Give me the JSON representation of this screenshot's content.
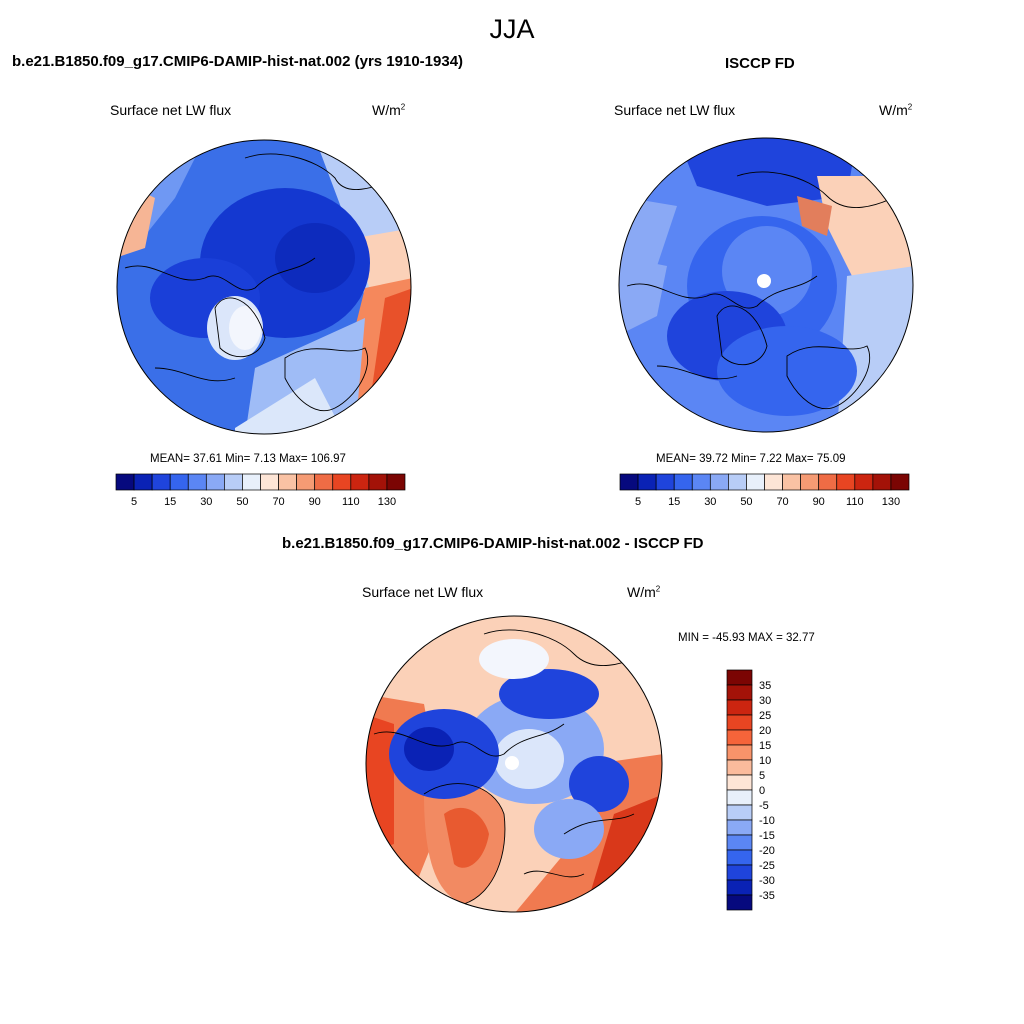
{
  "season": "JJA",
  "panels": {
    "model": {
      "title": "b.e21.B1850.f09_g17.CMIP6-DAMIP-hist-nat.002 (yrs 1910-1934)",
      "variable": "Surface net LW flux",
      "units_base": "W/m",
      "units_exp": "2",
      "stats": "MEAN=  37.61  Min=   7.13  Max= 106.97"
    },
    "obs": {
      "title": "ISCCP FD",
      "variable": "Surface net LW flux",
      "units_base": "W/m",
      "units_exp": "2",
      "stats": "MEAN=  39.72  Min=   7.22  Max=  75.09"
    },
    "diff": {
      "title": "b.e21.B1850.f09_g17.CMIP6-DAMIP-hist-nat.002 - ISCCP FD",
      "variable": "Surface net LW flux",
      "units_base": "W/m",
      "units_exp": "2",
      "stats": "MIN = -45.93 MAX =  32.77"
    }
  },
  "colorbar_main": {
    "colors": [
      "#06097e",
      "#0a22b5",
      "#1f44dc",
      "#3565ee",
      "#5b86f4",
      "#8aa9f5",
      "#b8cdf7",
      "#e8f0fb",
      "#fde5d6",
      "#f9c2a4",
      "#f59b74",
      "#ef6c45",
      "#e84522",
      "#cc2510",
      "#a31208",
      "#7b0503"
    ],
    "tick_labels": [
      "5",
      "15",
      "30",
      "50",
      "70",
      "90",
      "110",
      "130"
    ]
  },
  "colorbar_diff": {
    "colors": [
      "#7b0503",
      "#a31208",
      "#cc2510",
      "#e84522",
      "#f5643a",
      "#f8936a",
      "#fbbb9c",
      "#fde5d6",
      "#e8f0fb",
      "#b8cdf7",
      "#8aa9f5",
      "#5b86f4",
      "#3565ee",
      "#1f44dc",
      "#0a22b5",
      "#06097e"
    ],
    "tick_labels": [
      "35",
      "30",
      "25",
      "20",
      "15",
      "10",
      "5",
      "0",
      "-5",
      "-10",
      "-15",
      "-20",
      "-25",
      "-30",
      "-35"
    ]
  }
}
